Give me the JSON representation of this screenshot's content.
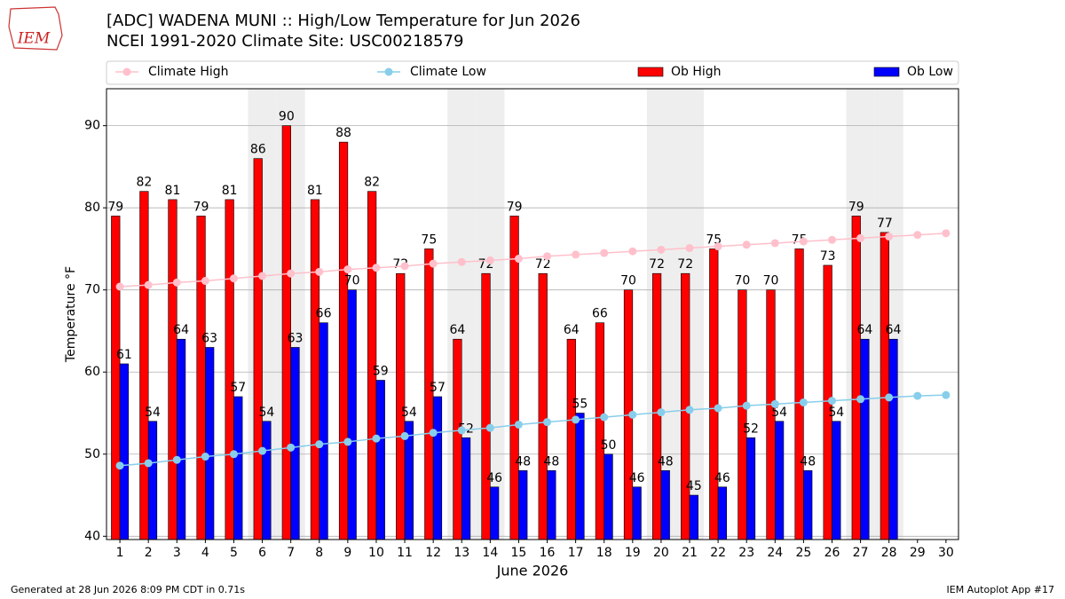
{
  "logo": "IEM",
  "footer": {
    "left": "Generated at 28 Jun 2026 8:09 PM CDT in 0.71s",
    "right": "IEM Autoplot App #17"
  },
  "chart_data": {
    "type": "bar",
    "title": "[ADC] WADENA MUNI :: High/Low Temperature for Jun 2026",
    "subtitle": "NCEI 1991-2020 Climate Site: USC00218579",
    "x_label": "June 2026",
    "y_label": "Temperature °F",
    "x": [
      1,
      2,
      3,
      4,
      5,
      6,
      7,
      8,
      9,
      10,
      11,
      12,
      13,
      14,
      15,
      16,
      17,
      18,
      19,
      20,
      21,
      22,
      23,
      24,
      25,
      26,
      27,
      28,
      29,
      30
    ],
    "xlim": [
      0.53,
      30.44
    ],
    "xticks": [
      1,
      2,
      3,
      4,
      5,
      6,
      7,
      8,
      9,
      10,
      11,
      12,
      13,
      14,
      15,
      16,
      17,
      18,
      19,
      20,
      21,
      22,
      23,
      24,
      25,
      26,
      27,
      28,
      29,
      30
    ],
    "ylim": [
      39.6,
      94.5
    ],
    "yticks": [
      40,
      50,
      60,
      70,
      80,
      90
    ],
    "grid": true,
    "shaded_days": [
      6,
      7,
      13,
      14,
      20,
      21,
      27,
      28
    ],
    "shade_color": "#eeeeee",
    "series": [
      {
        "name": "Climate High",
        "kind": "line",
        "color": "#ffc0cb",
        "values": [
          70.4,
          70.6,
          70.9,
          71.1,
          71.4,
          71.7,
          72.0,
          72.2,
          72.5,
          72.7,
          72.9,
          73.2,
          73.4,
          73.6,
          73.8,
          74.1,
          74.3,
          74.5,
          74.7,
          74.9,
          75.1,
          75.3,
          75.5,
          75.7,
          75.9,
          76.1,
          76.3,
          76.5,
          76.7,
          76.9
        ]
      },
      {
        "name": "Climate Low",
        "kind": "line",
        "color": "#87ceeb",
        "values": [
          48.6,
          48.9,
          49.3,
          49.7,
          50.0,
          50.4,
          50.8,
          51.2,
          51.5,
          51.9,
          52.2,
          52.6,
          52.9,
          53.2,
          53.6,
          53.9,
          54.2,
          54.5,
          54.8,
          55.1,
          55.4,
          55.6,
          55.9,
          56.1,
          56.3,
          56.5,
          56.7,
          56.9,
          57.1,
          57.2
        ]
      },
      {
        "name": "Ob High",
        "kind": "bar",
        "color": "#ff0000",
        "values": [
          79,
          82,
          81,
          79,
          81,
          86,
          90,
          81,
          88,
          82,
          72,
          75,
          64,
          72,
          79,
          72,
          64,
          66,
          70,
          72,
          72,
          75,
          70,
          70,
          75,
          73,
          79,
          77,
          null,
          null
        ]
      },
      {
        "name": "Ob Low",
        "kind": "bar",
        "color": "#0000ff",
        "values": [
          61,
          54,
          64,
          63,
          57,
          54,
          63,
          66,
          70,
          59,
          54,
          57,
          52,
          46,
          48,
          48,
          55,
          50,
          46,
          48,
          45,
          46,
          52,
          54,
          48,
          54,
          64,
          64,
          null,
          null
        ]
      }
    ]
  }
}
